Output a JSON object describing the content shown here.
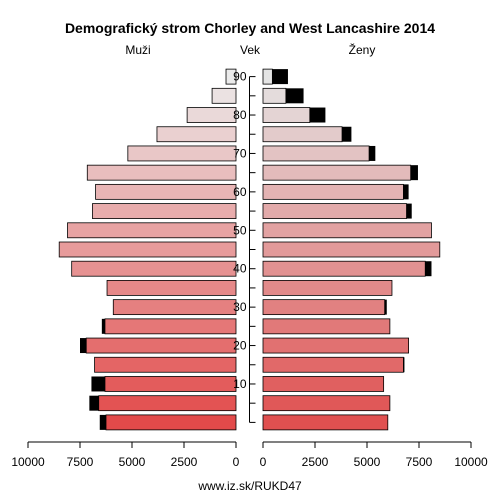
{
  "title": "Demografický strom Chorley and West Lancashire 2014",
  "footer": "www.iz.sk/RUKD47",
  "chart_data": {
    "type": "bar",
    "subtype": "population-pyramid",
    "title": "Demografický strom Chorley and West Lancashire 2014",
    "left_label": "Muži",
    "center_label": "Vek",
    "right_label": "Ženy",
    "age_groups": [
      "0-4",
      "5-9",
      "10-14",
      "15-19",
      "20-24",
      "25-29",
      "30-34",
      "35-39",
      "40-44",
      "45-49",
      "50-54",
      "55-59",
      "60-64",
      "65-69",
      "70-74",
      "75-79",
      "80-84",
      "85-89",
      "90+"
    ],
    "age_ticks": [
      "10",
      "20",
      "30",
      "40",
      "50",
      "60",
      "70",
      "80",
      "90"
    ],
    "x_ticks_left": [
      "10000",
      "7500",
      "5000",
      "2500",
      "0"
    ],
    "x_ticks_right": [
      "0",
      "2500",
      "5000",
      "7500",
      "10000"
    ],
    "xlim": [
      0,
      10000
    ],
    "series": [
      {
        "name": "Muži",
        "values": [
          6250,
          6600,
          6300,
          6800,
          7200,
          6300,
          5900,
          6200,
          7900,
          8500,
          8100,
          6900,
          6750,
          7150,
          5200,
          3800,
          2350,
          1150,
          480
        ],
        "excess": [
          300,
          450,
          650,
          0,
          300,
          150,
          0,
          0,
          0,
          0,
          0,
          0,
          0,
          0,
          0,
          0,
          0,
          0,
          0
        ]
      },
      {
        "name": "Ženy",
        "values": [
          6000,
          6100,
          5800,
          6750,
          7000,
          6100,
          5850,
          6200,
          7800,
          8500,
          8100,
          6900,
          6750,
          7100,
          5100,
          3800,
          2250,
          1100,
          450
        ],
        "excess": [
          0,
          0,
          0,
          50,
          0,
          0,
          100,
          0,
          300,
          0,
          0,
          250,
          250,
          350,
          300,
          450,
          750,
          850,
          750
        ]
      }
    ],
    "colors": {
      "male_young": "#e24a4a",
      "male_old": "#ebebeb",
      "female_young": "#e05050",
      "female_old": "#e4e4e4",
      "excess": "#000000"
    }
  }
}
